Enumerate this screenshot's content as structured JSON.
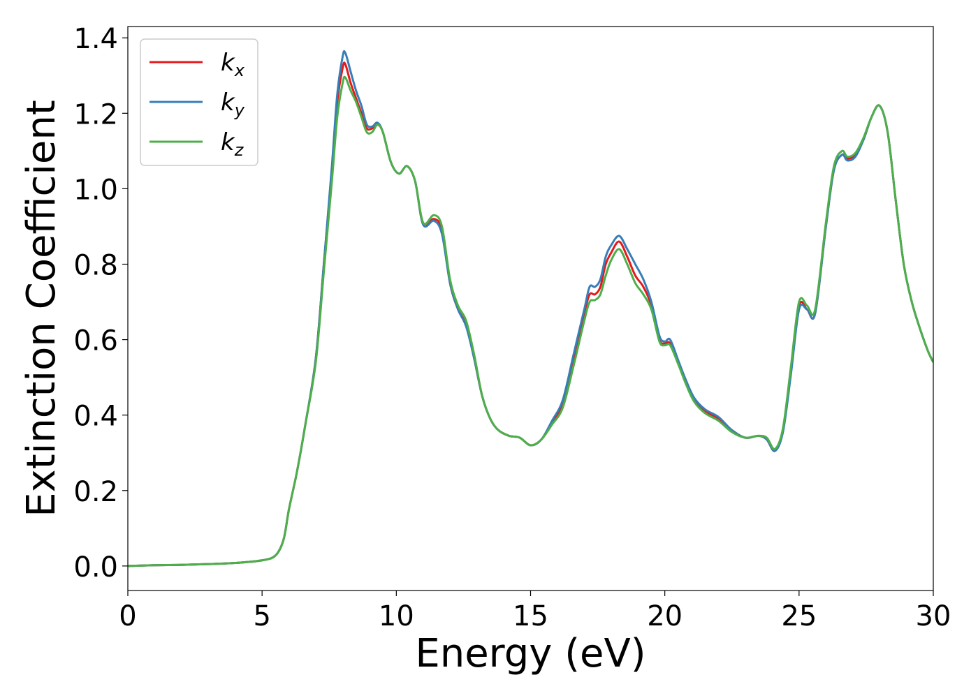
{
  "chart_data": {
    "type": "line",
    "title": "",
    "xlabel": "Energy (eV)",
    "ylabel": "Extinction Coefficient",
    "xlim": [
      0,
      30
    ],
    "ylim": [
      -0.065,
      1.43
    ],
    "xticks": [
      0,
      5,
      10,
      15,
      20,
      25,
      30
    ],
    "xtick_labels": [
      "0",
      "5",
      "10",
      "15",
      "20",
      "25",
      "30"
    ],
    "yticks": [
      0.0,
      0.2,
      0.4,
      0.6,
      0.8,
      1.0,
      1.2,
      1.4
    ],
    "ytick_labels": [
      "0.0",
      "0.2",
      "0.4",
      "0.6",
      "0.8",
      "1.0",
      "1.2",
      "1.4"
    ],
    "grid": false,
    "legend_position": "top-left",
    "series": [
      {
        "name": "k_x",
        "label_main": "k",
        "label_sub": "x",
        "color": "#e41a1c",
        "x": [
          0,
          1,
          2,
          3,
          4,
          5,
          5.5,
          5.8,
          6.0,
          6.3,
          6.6,
          7.0,
          7.3,
          7.6,
          7.8,
          8.0,
          8.1,
          8.3,
          8.5,
          8.7,
          8.9,
          9.1,
          9.3,
          9.5,
          9.8,
          10.1,
          10.4,
          10.7,
          11.0,
          11.4,
          11.7,
          12.0,
          12.3,
          12.6,
          12.9,
          13.2,
          13.5,
          13.8,
          14.2,
          14.6,
          15.0,
          15.4,
          15.8,
          16.2,
          16.6,
          17.0,
          17.2,
          17.4,
          17.6,
          17.8,
          18.0,
          18.3,
          18.6,
          18.9,
          19.2,
          19.5,
          19.8,
          20.0,
          20.2,
          20.5,
          20.8,
          21.1,
          21.5,
          22.0,
          22.5,
          23.0,
          23.5,
          23.8,
          24.1,
          24.4,
          24.7,
          25.0,
          25.3,
          25.6,
          26.0,
          26.3,
          26.6,
          26.8,
          27.1,
          27.4,
          27.7,
          28.0,
          28.3,
          28.6,
          28.9,
          29.2,
          29.5,
          29.8,
          30
        ],
        "values": [
          0.0,
          0.002,
          0.003,
          0.005,
          0.008,
          0.015,
          0.028,
          0.07,
          0.15,
          0.25,
          0.37,
          0.55,
          0.8,
          1.05,
          1.23,
          1.32,
          1.33,
          1.28,
          1.24,
          1.2,
          1.16,
          1.16,
          1.17,
          1.15,
          1.07,
          1.04,
          1.06,
          1.02,
          0.905,
          0.92,
          0.89,
          0.75,
          0.68,
          0.64,
          0.55,
          0.45,
          0.39,
          0.36,
          0.345,
          0.34,
          0.32,
          0.335,
          0.38,
          0.43,
          0.55,
          0.67,
          0.72,
          0.72,
          0.74,
          0.8,
          0.83,
          0.86,
          0.82,
          0.77,
          0.74,
          0.69,
          0.6,
          0.59,
          0.59,
          0.54,
          0.49,
          0.44,
          0.41,
          0.39,
          0.36,
          0.34,
          0.345,
          0.335,
          0.305,
          0.36,
          0.52,
          0.69,
          0.68,
          0.67,
          0.9,
          1.05,
          1.09,
          1.08,
          1.09,
          1.13,
          1.19,
          1.22,
          1.15,
          0.97,
          0.8,
          0.7,
          0.63,
          0.57,
          0.54
        ]
      },
      {
        "name": "k_y",
        "label_main": "k",
        "label_sub": "y",
        "color": "#377eb8",
        "x": [
          0,
          1,
          2,
          3,
          4,
          5,
          5.5,
          5.8,
          6.0,
          6.3,
          6.6,
          7.0,
          7.3,
          7.6,
          7.8,
          8.0,
          8.1,
          8.3,
          8.5,
          8.7,
          8.9,
          9.1,
          9.3,
          9.5,
          9.8,
          10.1,
          10.4,
          10.7,
          11.0,
          11.4,
          11.7,
          12.0,
          12.3,
          12.6,
          12.9,
          13.2,
          13.5,
          13.8,
          14.2,
          14.6,
          15.0,
          15.4,
          15.8,
          16.2,
          16.6,
          17.0,
          17.2,
          17.4,
          17.6,
          17.8,
          18.0,
          18.3,
          18.6,
          18.9,
          19.2,
          19.5,
          19.8,
          20.0,
          20.2,
          20.5,
          20.8,
          21.1,
          21.5,
          22.0,
          22.5,
          23.0,
          23.5,
          23.8,
          24.1,
          24.4,
          24.7,
          25.0,
          25.3,
          25.6,
          26.0,
          26.3,
          26.6,
          26.8,
          27.1,
          27.4,
          27.7,
          28.0,
          28.3,
          28.6,
          28.9,
          29.2,
          29.5,
          29.8,
          30
        ],
        "values": [
          0.0,
          0.002,
          0.003,
          0.005,
          0.008,
          0.015,
          0.028,
          0.07,
          0.15,
          0.25,
          0.37,
          0.55,
          0.8,
          1.06,
          1.25,
          1.35,
          1.36,
          1.31,
          1.26,
          1.22,
          1.17,
          1.165,
          1.175,
          1.15,
          1.07,
          1.04,
          1.06,
          1.02,
          0.905,
          0.915,
          0.88,
          0.75,
          0.68,
          0.635,
          0.55,
          0.45,
          0.39,
          0.36,
          0.345,
          0.34,
          0.32,
          0.335,
          0.385,
          0.44,
          0.56,
          0.68,
          0.74,
          0.74,
          0.76,
          0.82,
          0.85,
          0.875,
          0.84,
          0.8,
          0.76,
          0.7,
          0.61,
          0.595,
          0.6,
          0.545,
          0.49,
          0.445,
          0.415,
          0.395,
          0.36,
          0.34,
          0.345,
          0.335,
          0.305,
          0.355,
          0.51,
          0.68,
          0.68,
          0.67,
          0.9,
          1.05,
          1.09,
          1.075,
          1.085,
          1.13,
          1.19,
          1.22,
          1.15,
          0.97,
          0.8,
          0.7,
          0.63,
          0.57,
          0.54
        ]
      },
      {
        "name": "k_z",
        "label_main": "k",
        "label_sub": "z",
        "color": "#4daf4a",
        "x": [
          0,
          1,
          2,
          3,
          4,
          5,
          5.5,
          5.8,
          6.0,
          6.3,
          6.6,
          7.0,
          7.3,
          7.6,
          7.8,
          8.0,
          8.1,
          8.3,
          8.5,
          8.7,
          8.9,
          9.1,
          9.3,
          9.5,
          9.8,
          10.1,
          10.4,
          10.7,
          11.0,
          11.4,
          11.7,
          12.0,
          12.3,
          12.6,
          12.9,
          13.2,
          13.5,
          13.8,
          14.2,
          14.6,
          15.0,
          15.4,
          15.8,
          16.2,
          16.6,
          17.0,
          17.2,
          17.4,
          17.6,
          17.8,
          18.0,
          18.3,
          18.6,
          18.9,
          19.2,
          19.5,
          19.8,
          20.0,
          20.2,
          20.5,
          20.8,
          21.1,
          21.5,
          22.0,
          22.5,
          23.0,
          23.5,
          23.8,
          24.1,
          24.4,
          24.7,
          25.0,
          25.3,
          25.6,
          26.0,
          26.3,
          26.6,
          26.8,
          27.1,
          27.4,
          27.7,
          28.0,
          28.3,
          28.6,
          28.9,
          29.2,
          29.5,
          29.8,
          30
        ],
        "values": [
          0.0,
          0.002,
          0.003,
          0.005,
          0.008,
          0.015,
          0.028,
          0.07,
          0.15,
          0.25,
          0.37,
          0.54,
          0.78,
          1.02,
          1.19,
          1.28,
          1.295,
          1.26,
          1.23,
          1.19,
          1.15,
          1.15,
          1.17,
          1.15,
          1.07,
          1.04,
          1.06,
          1.02,
          0.91,
          0.93,
          0.9,
          0.76,
          0.69,
          0.65,
          0.56,
          0.45,
          0.39,
          0.36,
          0.345,
          0.34,
          0.32,
          0.335,
          0.375,
          0.42,
          0.53,
          0.65,
          0.7,
          0.705,
          0.72,
          0.77,
          0.81,
          0.84,
          0.8,
          0.75,
          0.72,
          0.68,
          0.595,
          0.585,
          0.585,
          0.535,
          0.48,
          0.435,
          0.405,
          0.385,
          0.355,
          0.34,
          0.345,
          0.34,
          0.31,
          0.365,
          0.53,
          0.7,
          0.69,
          0.68,
          0.91,
          1.06,
          1.1,
          1.085,
          1.095,
          1.135,
          1.19,
          1.22,
          1.15,
          0.97,
          0.8,
          0.7,
          0.63,
          0.57,
          0.54
        ]
      }
    ]
  }
}
